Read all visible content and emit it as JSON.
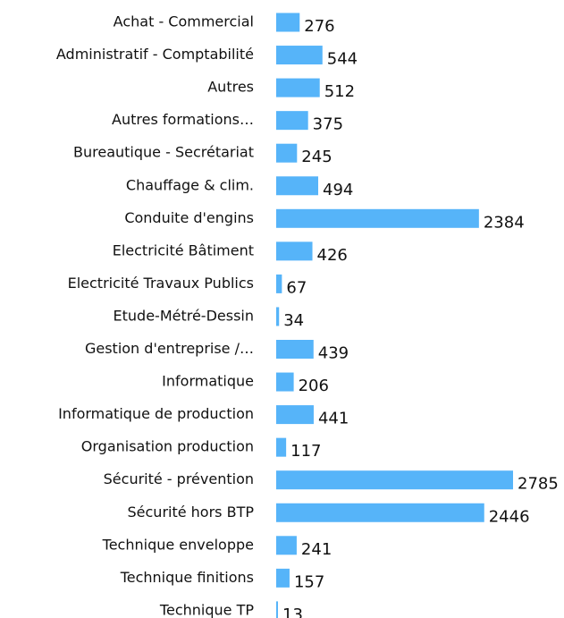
{
  "chart_data": {
    "type": "bar",
    "orientation": "horizontal",
    "color": "#56b4f9",
    "categories": [
      "Achat - Commercial",
      "Administratif - Comptabilité",
      "Autres",
      "Autres formations…",
      "Bureautique - Secrétariat",
      "Chauffage & clim.",
      "Conduite d'engins",
      "Electricité Bâtiment",
      "Electricité Travaux Publics",
      "Etude-Métré-Dessin",
      "Gestion d'entreprise /…",
      "Informatique",
      "Informatique de production",
      "Organisation production",
      "Sécurité - prévention",
      "Sécurité hors BTP",
      "Technique enveloppe",
      "Technique finitions",
      "Technique TP"
    ],
    "values": [
      276,
      544,
      512,
      375,
      245,
      494,
      2384,
      426,
      67,
      34,
      439,
      206,
      441,
      117,
      2785,
      2446,
      241,
      157,
      13
    ]
  }
}
